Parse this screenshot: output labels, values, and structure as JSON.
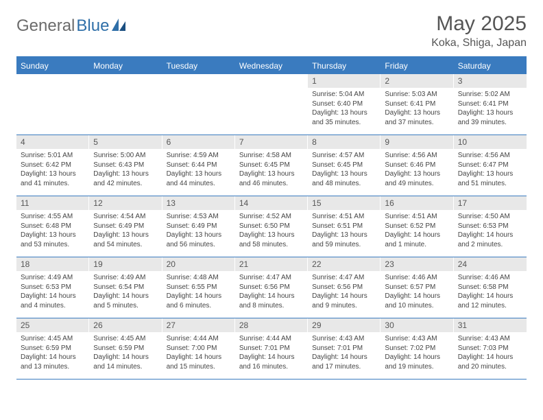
{
  "logo": {
    "text1": "General",
    "text2": "Blue"
  },
  "title": "May 2025",
  "location": "Koka, Shiga, Japan",
  "colors": {
    "header_bg": "#3a7bbf",
    "header_text": "#ffffff",
    "daynum_bg": "#e8e8e8",
    "border": "#3a7bbf",
    "body_text": "#444444",
    "title_text": "#555555"
  },
  "day_names": [
    "Sunday",
    "Monday",
    "Tuesday",
    "Wednesday",
    "Thursday",
    "Friday",
    "Saturday"
  ],
  "weeks": [
    [
      {
        "empty": true
      },
      {
        "empty": true
      },
      {
        "empty": true
      },
      {
        "empty": true
      },
      {
        "n": "1",
        "sr": "Sunrise: 5:04 AM",
        "ss": "Sunset: 6:40 PM",
        "d1": "Daylight: 13 hours",
        "d2": "and 35 minutes."
      },
      {
        "n": "2",
        "sr": "Sunrise: 5:03 AM",
        "ss": "Sunset: 6:41 PM",
        "d1": "Daylight: 13 hours",
        "d2": "and 37 minutes."
      },
      {
        "n": "3",
        "sr": "Sunrise: 5:02 AM",
        "ss": "Sunset: 6:41 PM",
        "d1": "Daylight: 13 hours",
        "d2": "and 39 minutes."
      }
    ],
    [
      {
        "n": "4",
        "sr": "Sunrise: 5:01 AM",
        "ss": "Sunset: 6:42 PM",
        "d1": "Daylight: 13 hours",
        "d2": "and 41 minutes."
      },
      {
        "n": "5",
        "sr": "Sunrise: 5:00 AM",
        "ss": "Sunset: 6:43 PM",
        "d1": "Daylight: 13 hours",
        "d2": "and 42 minutes."
      },
      {
        "n": "6",
        "sr": "Sunrise: 4:59 AM",
        "ss": "Sunset: 6:44 PM",
        "d1": "Daylight: 13 hours",
        "d2": "and 44 minutes."
      },
      {
        "n": "7",
        "sr": "Sunrise: 4:58 AM",
        "ss": "Sunset: 6:45 PM",
        "d1": "Daylight: 13 hours",
        "d2": "and 46 minutes."
      },
      {
        "n": "8",
        "sr": "Sunrise: 4:57 AM",
        "ss": "Sunset: 6:45 PM",
        "d1": "Daylight: 13 hours",
        "d2": "and 48 minutes."
      },
      {
        "n": "9",
        "sr": "Sunrise: 4:56 AM",
        "ss": "Sunset: 6:46 PM",
        "d1": "Daylight: 13 hours",
        "d2": "and 49 minutes."
      },
      {
        "n": "10",
        "sr": "Sunrise: 4:56 AM",
        "ss": "Sunset: 6:47 PM",
        "d1": "Daylight: 13 hours",
        "d2": "and 51 minutes."
      }
    ],
    [
      {
        "n": "11",
        "sr": "Sunrise: 4:55 AM",
        "ss": "Sunset: 6:48 PM",
        "d1": "Daylight: 13 hours",
        "d2": "and 53 minutes."
      },
      {
        "n": "12",
        "sr": "Sunrise: 4:54 AM",
        "ss": "Sunset: 6:49 PM",
        "d1": "Daylight: 13 hours",
        "d2": "and 54 minutes."
      },
      {
        "n": "13",
        "sr": "Sunrise: 4:53 AM",
        "ss": "Sunset: 6:49 PM",
        "d1": "Daylight: 13 hours",
        "d2": "and 56 minutes."
      },
      {
        "n": "14",
        "sr": "Sunrise: 4:52 AM",
        "ss": "Sunset: 6:50 PM",
        "d1": "Daylight: 13 hours",
        "d2": "and 58 minutes."
      },
      {
        "n": "15",
        "sr": "Sunrise: 4:51 AM",
        "ss": "Sunset: 6:51 PM",
        "d1": "Daylight: 13 hours",
        "d2": "and 59 minutes."
      },
      {
        "n": "16",
        "sr": "Sunrise: 4:51 AM",
        "ss": "Sunset: 6:52 PM",
        "d1": "Daylight: 14 hours",
        "d2": "and 1 minute."
      },
      {
        "n": "17",
        "sr": "Sunrise: 4:50 AM",
        "ss": "Sunset: 6:53 PM",
        "d1": "Daylight: 14 hours",
        "d2": "and 2 minutes."
      }
    ],
    [
      {
        "n": "18",
        "sr": "Sunrise: 4:49 AM",
        "ss": "Sunset: 6:53 PM",
        "d1": "Daylight: 14 hours",
        "d2": "and 4 minutes."
      },
      {
        "n": "19",
        "sr": "Sunrise: 4:49 AM",
        "ss": "Sunset: 6:54 PM",
        "d1": "Daylight: 14 hours",
        "d2": "and 5 minutes."
      },
      {
        "n": "20",
        "sr": "Sunrise: 4:48 AM",
        "ss": "Sunset: 6:55 PM",
        "d1": "Daylight: 14 hours",
        "d2": "and 6 minutes."
      },
      {
        "n": "21",
        "sr": "Sunrise: 4:47 AM",
        "ss": "Sunset: 6:56 PM",
        "d1": "Daylight: 14 hours",
        "d2": "and 8 minutes."
      },
      {
        "n": "22",
        "sr": "Sunrise: 4:47 AM",
        "ss": "Sunset: 6:56 PM",
        "d1": "Daylight: 14 hours",
        "d2": "and 9 minutes."
      },
      {
        "n": "23",
        "sr": "Sunrise: 4:46 AM",
        "ss": "Sunset: 6:57 PM",
        "d1": "Daylight: 14 hours",
        "d2": "and 10 minutes."
      },
      {
        "n": "24",
        "sr": "Sunrise: 4:46 AM",
        "ss": "Sunset: 6:58 PM",
        "d1": "Daylight: 14 hours",
        "d2": "and 12 minutes."
      }
    ],
    [
      {
        "n": "25",
        "sr": "Sunrise: 4:45 AM",
        "ss": "Sunset: 6:59 PM",
        "d1": "Daylight: 14 hours",
        "d2": "and 13 minutes."
      },
      {
        "n": "26",
        "sr": "Sunrise: 4:45 AM",
        "ss": "Sunset: 6:59 PM",
        "d1": "Daylight: 14 hours",
        "d2": "and 14 minutes."
      },
      {
        "n": "27",
        "sr": "Sunrise: 4:44 AM",
        "ss": "Sunset: 7:00 PM",
        "d1": "Daylight: 14 hours",
        "d2": "and 15 minutes."
      },
      {
        "n": "28",
        "sr": "Sunrise: 4:44 AM",
        "ss": "Sunset: 7:01 PM",
        "d1": "Daylight: 14 hours",
        "d2": "and 16 minutes."
      },
      {
        "n": "29",
        "sr": "Sunrise: 4:43 AM",
        "ss": "Sunset: 7:01 PM",
        "d1": "Daylight: 14 hours",
        "d2": "and 17 minutes."
      },
      {
        "n": "30",
        "sr": "Sunrise: 4:43 AM",
        "ss": "Sunset: 7:02 PM",
        "d1": "Daylight: 14 hours",
        "d2": "and 19 minutes."
      },
      {
        "n": "31",
        "sr": "Sunrise: 4:43 AM",
        "ss": "Sunset: 7:03 PM",
        "d1": "Daylight: 14 hours",
        "d2": "and 20 minutes."
      }
    ]
  ]
}
